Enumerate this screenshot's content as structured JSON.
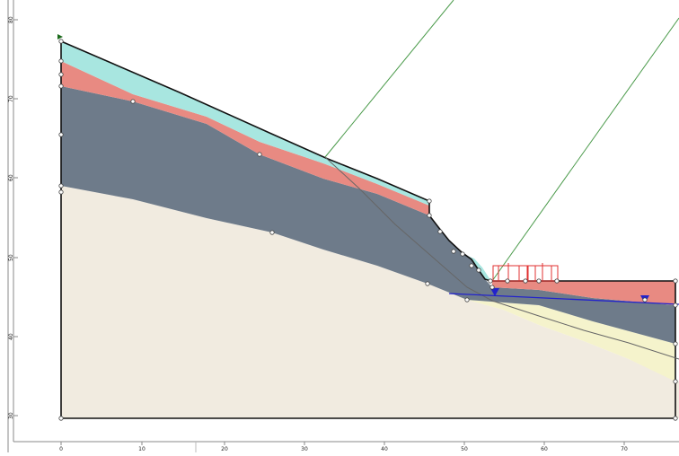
{
  "axes": {
    "y_ticks": [
      "80",
      "70",
      "60",
      "50",
      "40",
      "30"
    ],
    "x_ticks": [
      "0",
      "10",
      "20",
      "30",
      "40",
      "50",
      "60",
      "70"
    ]
  },
  "colors": {
    "background": "#ffffff",
    "layer_top": "#a8e6e0",
    "layer_weak": "#e88a82",
    "layer_middle": "#6e7b8a",
    "layer_base": "#f1ebe0",
    "layer_fill": "#f5f3cc",
    "outline": "#111111",
    "water_table": "#2222cc",
    "slip_surface": "#4a9a4a",
    "load": "#e03030",
    "vertex": "#ffffff"
  },
  "icons": {
    "water_table_marker": "inverted-triangle-icon",
    "load_block": "distributed-load-icon",
    "vertex": "circle-vertex-icon"
  }
}
